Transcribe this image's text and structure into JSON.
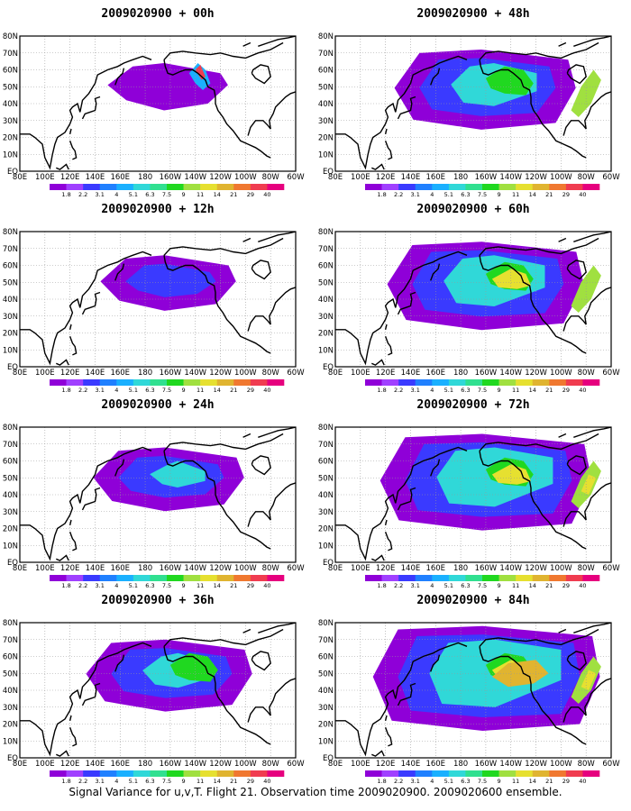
{
  "figure": {
    "footer": "Signal Variance for u,v,T. Flight 21. Observation time 2009020900. 2009020600 ensemble.",
    "x_tick_labels": [
      "80E",
      "100E",
      "120E",
      "140E",
      "160E",
      "180",
      "160W",
      "140W",
      "120W",
      "100W",
      "80W",
      "60W"
    ],
    "y_tick_labels": [
      "EQ",
      "10N",
      "20N",
      "30N",
      "40N",
      "50N",
      "60N",
      "70N",
      "80N"
    ],
    "legend_labels": [
      "1.8",
      "2.2",
      "3.1",
      "4",
      "5.1",
      "6.3",
      "7.5",
      "9",
      "11",
      "14",
      "21",
      "29",
      "40"
    ],
    "legend_colors": [
      "#8f00d8",
      "#a040ff",
      "#3a3aff",
      "#2080ff",
      "#1ab0ff",
      "#30d8d8",
      "#30e090",
      "#20d820",
      "#a0e040",
      "#e6e030",
      "#e0b430",
      "#f07830",
      "#f03c50",
      "#e6007e"
    ]
  },
  "panels": [
    {
      "title": "2009020900 + 00h",
      "level": 0
    },
    {
      "title": "2009020900 + 48h",
      "level": 4
    },
    {
      "title": "2009020900 + 12h",
      "level": 1
    },
    {
      "title": "2009020900 + 60h",
      "level": 5
    },
    {
      "title": "2009020900 + 24h",
      "level": 2
    },
    {
      "title": "2009020900 + 72h",
      "level": 6
    },
    {
      "title": "2009020900 + 36h",
      "level": 3
    },
    {
      "title": "2009020900 + 84h",
      "level": 7
    }
  ]
}
